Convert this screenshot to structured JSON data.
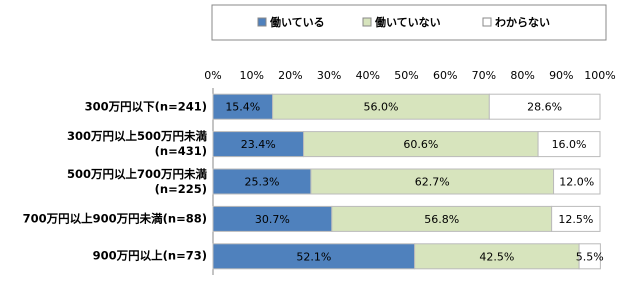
{
  "chart_data": {
    "type": "stacked_bar_horizontal",
    "categories": [
      "300万円以下(n=241)",
      "300万円以上500万円未満\n(n=431)",
      "500万円以上700万円未満\n(n=225)",
      "700万円以上900万円未満(n=88)",
      "900万円以上(n=73)"
    ],
    "series": [
      {
        "name": "働いている",
        "color": "#4f81bd",
        "values": [
          15.4,
          23.4,
          25.3,
          30.7,
          52.1
        ],
        "value_labels": [
          "15.4%",
          "23.4%",
          "25.3%",
          "30.7%",
          "52.1%"
        ]
      },
      {
        "name": "働いていない",
        "color": "#d7e4bd",
        "values": [
          56.0,
          60.6,
          62.7,
          56.8,
          42.5
        ],
        "value_labels": [
          "56.0%",
          "60.6%",
          "62.7%",
          "56.8%",
          "42.5%"
        ]
      },
      {
        "name": "わからない",
        "color": "#ffffff",
        "values": [
          28.6,
          16.0,
          12.0,
          12.5,
          5.5
        ],
        "value_labels": [
          "28.6%",
          "16.0%",
          "12.0%",
          "12.5%",
          "5.5%"
        ]
      }
    ],
    "xlim": [
      0,
      100
    ],
    "xticks": [
      {
        "value": 0,
        "label": "0%"
      },
      {
        "value": 10,
        "label": "10%"
      },
      {
        "value": 20,
        "label": "20%"
      },
      {
        "value": 30,
        "label": "30%"
      },
      {
        "value": 40,
        "label": "40%"
      },
      {
        "value": 50,
        "label": "50%"
      },
      {
        "value": 60,
        "label": "60%"
      },
      {
        "value": 70,
        "label": "70%"
      },
      {
        "value": 80,
        "label": "80%"
      },
      {
        "value": 90,
        "label": "90%"
      },
      {
        "value": 100,
        "label": "100%"
      }
    ],
    "legend": "top"
  }
}
